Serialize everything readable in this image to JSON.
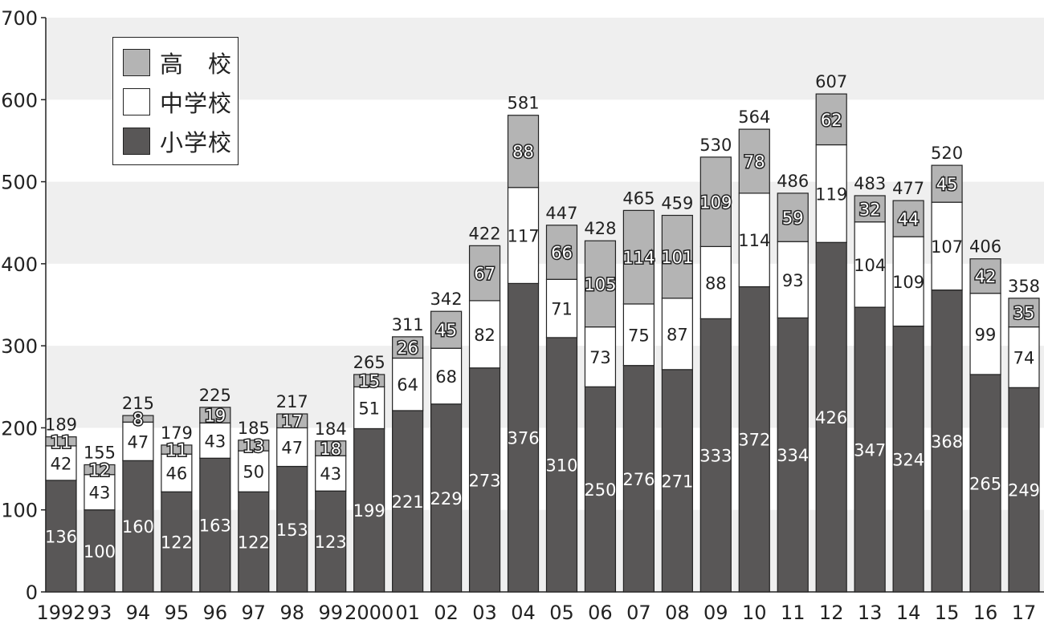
{
  "chart_data": {
    "type": "bar",
    "stacked": true,
    "title": "",
    "xlabel": "",
    "ylabel": "",
    "ylim": [
      0,
      700
    ],
    "yticks": [
      0,
      100,
      200,
      300,
      400,
      500,
      600,
      700
    ],
    "legend_placement": "top-left",
    "categories": [
      "1992",
      "93",
      "94",
      "95",
      "96",
      "97",
      "98",
      "99",
      "2000",
      "01",
      "02",
      "03",
      "04",
      "05",
      "06",
      "07",
      "08",
      "09",
      "10",
      "11",
      "12",
      "13",
      "14",
      "15",
      "16",
      "17"
    ],
    "series": [
      {
        "name": "小学校",
        "color": "#595757",
        "values": [
          136,
          100,
          160,
          122,
          163,
          122,
          153,
          123,
          199,
          221,
          229,
          273,
          376,
          310,
          250,
          276,
          271,
          333,
          372,
          334,
          426,
          347,
          324,
          368,
          265,
          249
        ]
      },
      {
        "name": "中学校",
        "color": "#ffffff",
        "values": [
          42,
          43,
          47,
          46,
          43,
          50,
          47,
          43,
          51,
          64,
          68,
          82,
          117,
          71,
          73,
          75,
          87,
          88,
          114,
          93,
          119,
          104,
          109,
          107,
          99,
          74
        ]
      },
      {
        "name": "高　校",
        "color": "#b4b4b4",
        "values": [
          11,
          12,
          8,
          11,
          19,
          13,
          17,
          18,
          15,
          26,
          45,
          67,
          88,
          66,
          105,
          114,
          101,
          109,
          78,
          59,
          62,
          32,
          44,
          45,
          42,
          35
        ]
      }
    ],
    "totals": [
      189,
      155,
      215,
      179,
      225,
      185,
      217,
      184,
      265,
      311,
      342,
      422,
      581,
      447,
      428,
      465,
      459,
      530,
      564,
      486,
      607,
      483,
      477,
      520,
      406,
      358
    ]
  },
  "legend": {
    "items": [
      "高　校",
      "中学校",
      "小学校"
    ]
  }
}
